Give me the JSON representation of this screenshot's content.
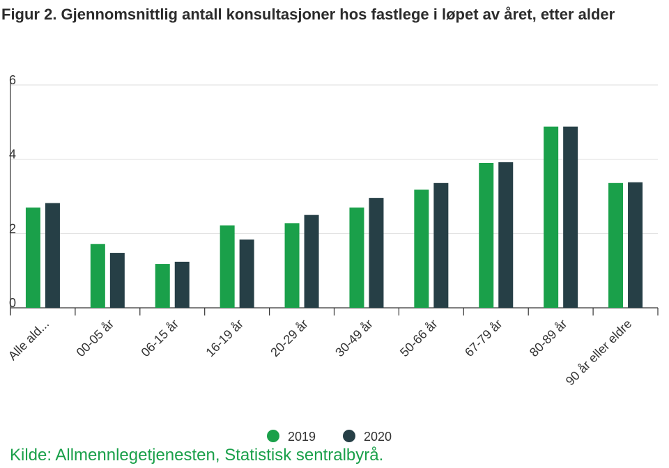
{
  "chart_data": {
    "type": "bar",
    "title": "Figur 2. Gjennomsnittlig antall konsultasjoner hos fastlege i løpet av året, etter alder",
    "categories": [
      "Alle ald...",
      "00-05 år",
      "06-15 år",
      "16-19 år",
      "20-29 år",
      "30-49 år",
      "50-66 år",
      "67-79 år",
      "80-89 år",
      "90 år eller eldre"
    ],
    "series": [
      {
        "name": "2019",
        "color": "#1aa04a",
        "values": [
          2.7,
          1.72,
          1.18,
          2.22,
          2.28,
          2.7,
          3.18,
          3.9,
          4.88,
          3.36
        ]
      },
      {
        "name": "2020",
        "color": "#263f46",
        "values": [
          2.82,
          1.48,
          1.24,
          1.84,
          2.5,
          2.96,
          3.36,
          3.92,
          4.88,
          3.38
        ]
      }
    ],
    "yticks": [
      0,
      2,
      4,
      6
    ],
    "ylim": [
      0,
      6
    ],
    "grid": true,
    "legend_position": "bottom"
  },
  "source": "Kilde: Allmennlegetjenesten, Statistisk sentralbyrå."
}
